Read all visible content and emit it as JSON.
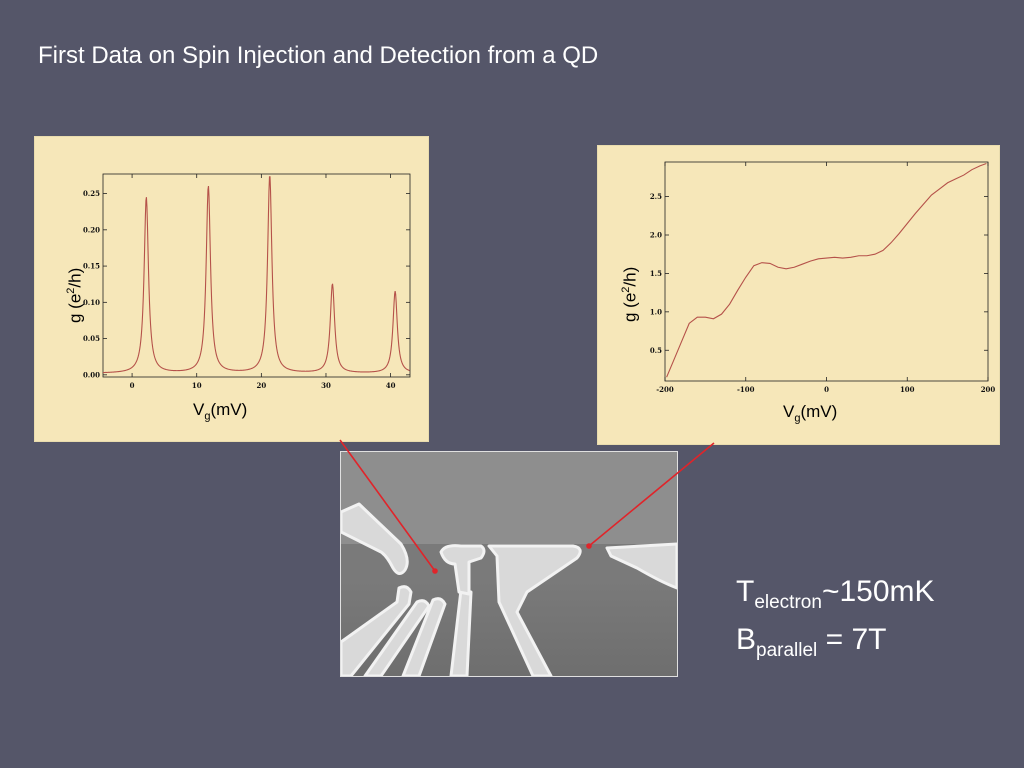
{
  "slide": {
    "title": "First Data on Spin Injection and Detection from a QD"
  },
  "conditions": {
    "line1_main": "T",
    "line1_sub": "electron",
    "line1_rest": "~150mK",
    "line2_main": "B",
    "line2_sub": "parallel",
    "line2_rest": " = 7T"
  },
  "colors": {
    "background": "#555669",
    "panel": "#f6e7b9",
    "trace": "#b5524a",
    "connector": "#e0242a"
  },
  "chart_data": [
    {
      "type": "line",
      "title": "",
      "ylabel_main": "g (e",
      "ylabel_sup": "2",
      "ylabel_end": "/h)",
      "xlabel_main": "V",
      "xlabel_sub": "g",
      "xlabel_end": "(mV)",
      "xlim": [
        -4.5,
        43
      ],
      "ylim": [
        -0.003,
        0.277
      ],
      "xticks": [
        0,
        10,
        20,
        30,
        40
      ],
      "xtick_labels": [
        "0",
        "10",
        "20",
        "30",
        "40"
      ],
      "yticks": [
        0,
        0.05,
        0.1,
        0.15,
        0.2,
        0.25
      ],
      "ytick_labels": [
        "0.00",
        "0.05",
        "0.10",
        "0.15",
        "0.20",
        "0.25"
      ],
      "peaks": [
        {
          "x": 2.2,
          "height": 0.245
        },
        {
          "x": 11.8,
          "height": 0.26
        },
        {
          "x": 21.3,
          "height": 0.275
        },
        {
          "x": 31.0,
          "height": 0.125
        },
        {
          "x": 40.7,
          "height": 0.115
        }
      ],
      "baseline": 0.002,
      "peak_width": 0.6
    },
    {
      "type": "line",
      "title": "",
      "ylabel_main": "g (e",
      "ylabel_sup": "2",
      "ylabel_end": "/h)",
      "xlabel_main": "V",
      "xlabel_sub": "g",
      "xlabel_end": "(mV)",
      "xlim": [
        -200,
        200
      ],
      "ylim": [
        0.1,
        2.95
      ],
      "xticks": [
        -200,
        -100,
        0,
        100,
        200
      ],
      "xtick_labels": [
        "-200",
        "-100",
        "0",
        "100",
        "200"
      ],
      "yticks": [
        0.5,
        1.0,
        1.5,
        2.0,
        2.5
      ],
      "ytick_labels": [
        "0.5",
        "1.0",
        "1.5",
        "2.0",
        "2.5"
      ],
      "x": [
        -198,
        -190,
        -180,
        -170,
        -160,
        -150,
        -140,
        -130,
        -120,
        -110,
        -100,
        -90,
        -80,
        -70,
        -60,
        -50,
        -40,
        -30,
        -20,
        -10,
        0,
        10,
        20,
        30,
        40,
        50,
        60,
        70,
        80,
        90,
        100,
        110,
        120,
        130,
        140,
        150,
        160,
        170,
        180,
        190,
        198
      ],
      "y": [
        0.15,
        0.35,
        0.6,
        0.85,
        0.93,
        0.93,
        0.91,
        0.97,
        1.1,
        1.28,
        1.45,
        1.6,
        1.64,
        1.63,
        1.58,
        1.56,
        1.58,
        1.62,
        1.66,
        1.69,
        1.7,
        1.71,
        1.7,
        1.71,
        1.73,
        1.73,
        1.75,
        1.8,
        1.9,
        2.02,
        2.15,
        2.28,
        2.4,
        2.52,
        2.6,
        2.68,
        2.73,
        2.78,
        2.85,
        2.9,
        2.93
      ]
    }
  ]
}
